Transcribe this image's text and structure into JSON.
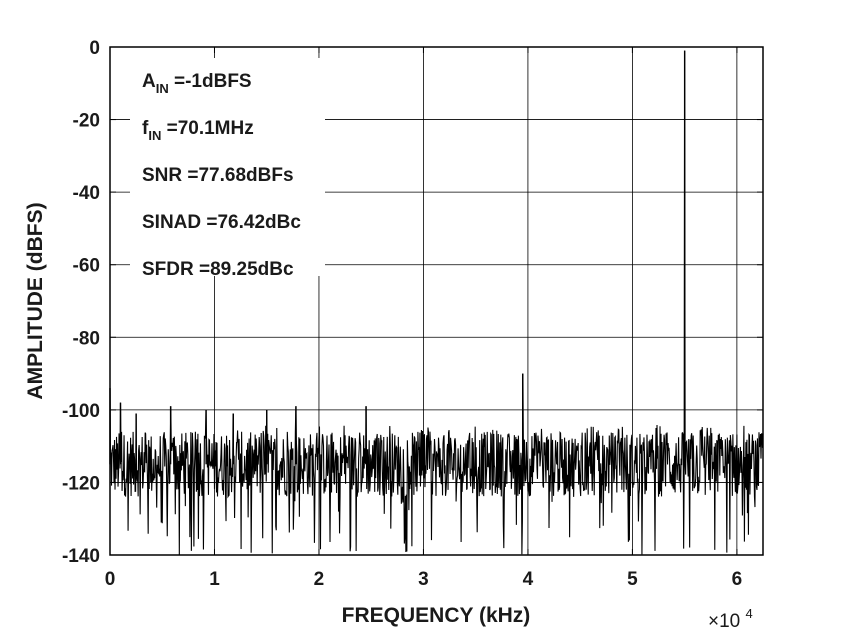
{
  "chart_data": {
    "type": "line",
    "title": "",
    "xlabel": "FREQUENCY (kHz)",
    "ylabel": "AMPLITUDE (dBFS)",
    "x_multiplier": {
      "base": "×10",
      "exponent": "4"
    },
    "xlim": [
      0,
      62500
    ],
    "ylim": [
      -140,
      0
    ],
    "grid": true,
    "x_ticks": [
      "0",
      "1",
      "2",
      "3",
      "4",
      "5",
      "6"
    ],
    "y_ticks": [
      "0",
      "-20",
      "-40",
      "-60",
      "-80",
      "-100",
      "-120",
      "-140"
    ],
    "line_color": "#000000",
    "noise_floor_dbfs": -115,
    "series": [
      {
        "values_description": "FFT spectrum: dense noise floor between about -105 and -135 dBFS across the full span",
        "spurs": [
          {
            "x": 0,
            "y": -94
          },
          {
            "x": 1000,
            "y": -98
          },
          {
            "x": 2500,
            "y": -101
          },
          {
            "x": 5800,
            "y": -99
          },
          {
            "x": 9200,
            "y": -100
          },
          {
            "x": 11800,
            "y": -101
          },
          {
            "x": 15000,
            "y": -100
          },
          {
            "x": 17800,
            "y": -99
          },
          {
            "x": 24500,
            "y": -99
          },
          {
            "x": 39500,
            "y": -90
          },
          {
            "x": 55000,
            "y": -1
          }
        ]
      }
    ],
    "annotations": [
      {
        "main": "A",
        "sub": "IN",
        "rest": " =-1dBFS"
      },
      {
        "main": "f",
        "sub": "IN",
        "rest": " =70.1MHz"
      },
      {
        "main": "SNR =77.68dBFs",
        "sub": "",
        "rest": ""
      },
      {
        "main": "SINAD =76.42dBc",
        "sub": "",
        "rest": ""
      },
      {
        "main": "SFDR =89.25dBc",
        "sub": "",
        "rest": ""
      }
    ]
  }
}
